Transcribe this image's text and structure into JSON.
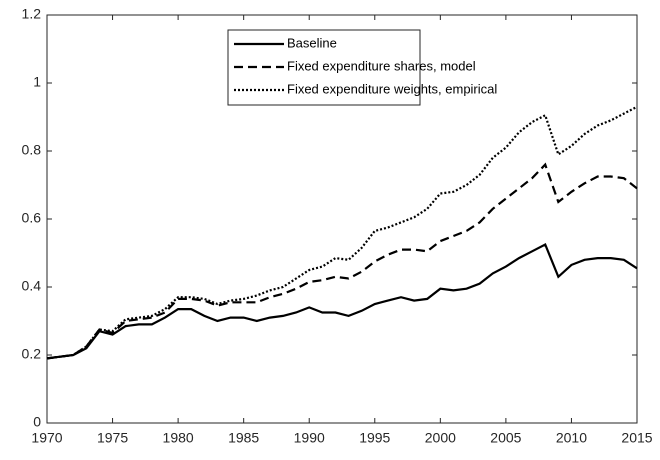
{
  "chart_data": {
    "type": "line",
    "x": [
      1970,
      1971,
      1972,
      1973,
      1974,
      1975,
      1976,
      1977,
      1978,
      1979,
      1980,
      1981,
      1982,
      1983,
      1984,
      1985,
      1986,
      1987,
      1988,
      1989,
      1990,
      1991,
      1992,
      1993,
      1994,
      1995,
      1996,
      1997,
      1998,
      1999,
      2000,
      2001,
      2002,
      2003,
      2004,
      2005,
      2006,
      2007,
      2008,
      2009,
      2010,
      2011,
      2012,
      2013,
      2014,
      2015
    ],
    "series": [
      {
        "name": "Baseline",
        "color": "#000000",
        "dash": "solid",
        "values": [
          0.19,
          0.195,
          0.2,
          0.22,
          0.27,
          0.26,
          0.285,
          0.29,
          0.29,
          0.31,
          0.335,
          0.335,
          0.315,
          0.3,
          0.31,
          0.31,
          0.3,
          0.31,
          0.315,
          0.325,
          0.34,
          0.325,
          0.325,
          0.315,
          0.33,
          0.35,
          0.36,
          0.37,
          0.36,
          0.365,
          0.395,
          0.39,
          0.395,
          0.41,
          0.44,
          0.46,
          0.485,
          0.505,
          0.525,
          0.43,
          0.465,
          0.48,
          0.485,
          0.485,
          0.48,
          0.455
        ]
      },
      {
        "name": "Fixed expenditure shares, model",
        "color": "#000000",
        "dash": "dashed",
        "values": [
          0.19,
          0.195,
          0.2,
          0.225,
          0.275,
          0.265,
          0.3,
          0.305,
          0.31,
          0.325,
          0.365,
          0.365,
          0.36,
          0.345,
          0.355,
          0.355,
          0.355,
          0.37,
          0.38,
          0.395,
          0.415,
          0.42,
          0.43,
          0.425,
          0.445,
          0.475,
          0.495,
          0.51,
          0.51,
          0.505,
          0.535,
          0.55,
          0.565,
          0.59,
          0.63,
          0.66,
          0.69,
          0.72,
          0.76,
          0.65,
          0.68,
          0.705,
          0.725,
          0.725,
          0.72,
          0.69
        ]
      },
      {
        "name": "Fixed expenditure weights, empirical",
        "color": "#000000",
        "dash": "dotted",
        "values": [
          0.19,
          0.195,
          0.2,
          0.225,
          0.275,
          0.27,
          0.305,
          0.31,
          0.315,
          0.335,
          0.37,
          0.37,
          0.365,
          0.35,
          0.36,
          0.365,
          0.375,
          0.39,
          0.4,
          0.425,
          0.45,
          0.46,
          0.485,
          0.48,
          0.515,
          0.565,
          0.575,
          0.59,
          0.605,
          0.63,
          0.675,
          0.68,
          0.7,
          0.73,
          0.78,
          0.81,
          0.855,
          0.885,
          0.905,
          0.79,
          0.815,
          0.85,
          0.875,
          0.89,
          0.91,
          0.93
        ]
      }
    ],
    "xlim": [
      1970,
      2015
    ],
    "xticks": [
      1970,
      1975,
      1980,
      1985,
      1990,
      1995,
      2000,
      2005,
      2010,
      2015
    ],
    "ylim": [
      0,
      1.2
    ],
    "yticks": [
      0,
      0.2,
      0.4,
      0.6,
      0.8,
      1,
      1.2
    ],
    "grid": false,
    "legend": "top-right"
  }
}
